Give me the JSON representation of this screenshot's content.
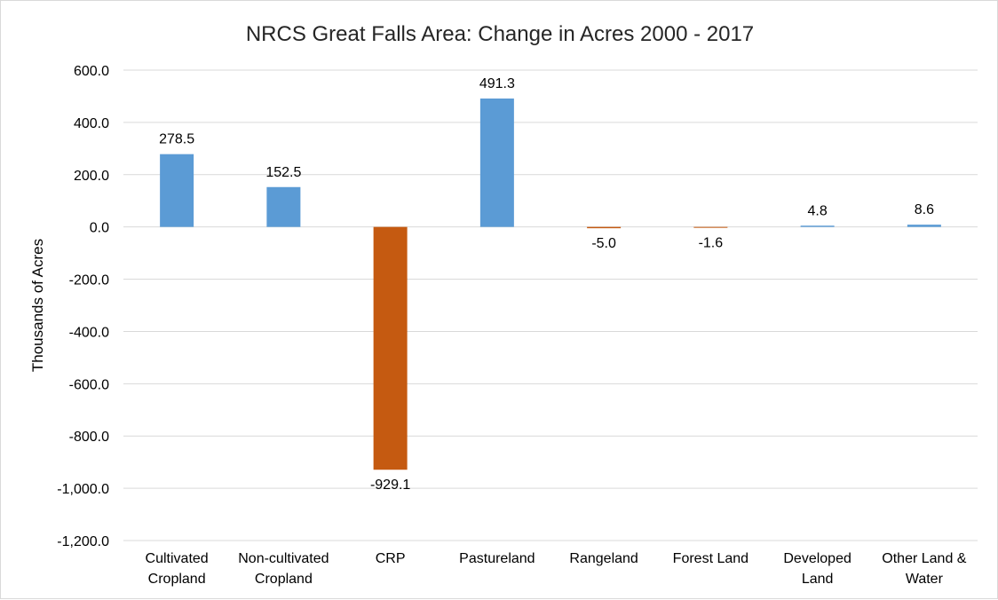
{
  "chart_data": {
    "type": "bar",
    "title": "NRCS Great Falls Area: Change in Acres 2000 - 2017",
    "ylabel": "Thousands of Acres",
    "xlabel": "",
    "ylim": [
      -1200,
      600
    ],
    "yticks": [
      600,
      400,
      200,
      0,
      -200,
      -400,
      -600,
      -800,
      -1000,
      -1200
    ],
    "ytick_labels": [
      "600.0",
      "400.0",
      "200.0",
      "0.0",
      "-200.0",
      "-400.0",
      "-600.0",
      "-800.0",
      "-1,000.0",
      "-1,200.0"
    ],
    "grid": true,
    "legend": "none",
    "categories": [
      [
        "Cultivated",
        "Cropland"
      ],
      [
        "Non-cultivated",
        "Cropland"
      ],
      [
        "CRP"
      ],
      [
        "Pastureland"
      ],
      [
        "Rangeland"
      ],
      [
        "Forest Land"
      ],
      [
        "Developed",
        "Land"
      ],
      [
        "Other Land &",
        "Water"
      ]
    ],
    "values": [
      278.5,
      152.5,
      -929.1,
      491.3,
      -5.0,
      -1.6,
      4.8,
      8.6
    ],
    "data_labels": [
      "278.5",
      "152.5",
      "-929.1",
      "491.3",
      "-5.0",
      "-1.6",
      "4.8",
      "8.6"
    ],
    "colors": {
      "positive": "#5b9bd5",
      "negative": "#c55a11"
    }
  }
}
